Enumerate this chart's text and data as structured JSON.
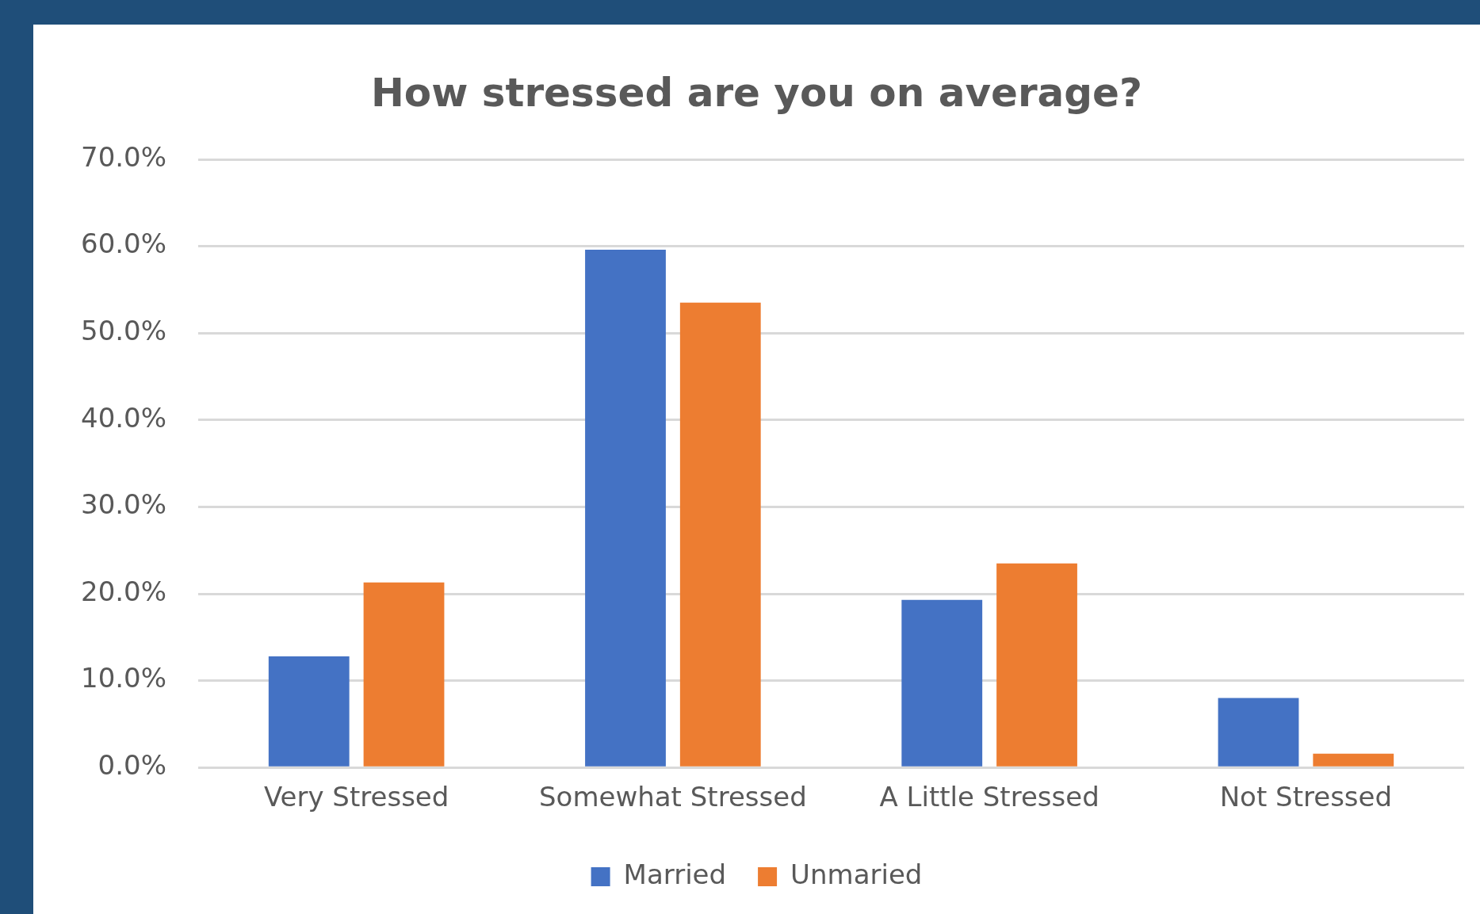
{
  "chart_data": {
    "type": "bar",
    "title": "How stressed are you on average?",
    "categories": [
      "Very Stressed",
      "Somewhat Stressed",
      "A Little Stressed",
      "Not Stressed"
    ],
    "series": [
      {
        "name": "Married",
        "color": "#4472c4",
        "values": [
          12.8,
          59.6,
          19.3,
          8.0
        ]
      },
      {
        "name": "Unmaried",
        "color": "#ed7d31",
        "values": [
          21.3,
          53.5,
          23.5,
          1.6
        ]
      }
    ],
    "ylim": [
      0,
      70
    ],
    "yticks": [
      {
        "value": 0,
        "label": "0.0%"
      },
      {
        "value": 10,
        "label": "10.0%"
      },
      {
        "value": 20,
        "label": "20.0%"
      },
      {
        "value": 30,
        "label": "30.0%"
      },
      {
        "value": 40,
        "label": "40.0%"
      },
      {
        "value": 50,
        "label": "50.0%"
      },
      {
        "value": 60,
        "label": "60.0%"
      },
      {
        "value": 70,
        "label": "70.0%"
      }
    ],
    "grid": "y",
    "legend": "bottom"
  }
}
